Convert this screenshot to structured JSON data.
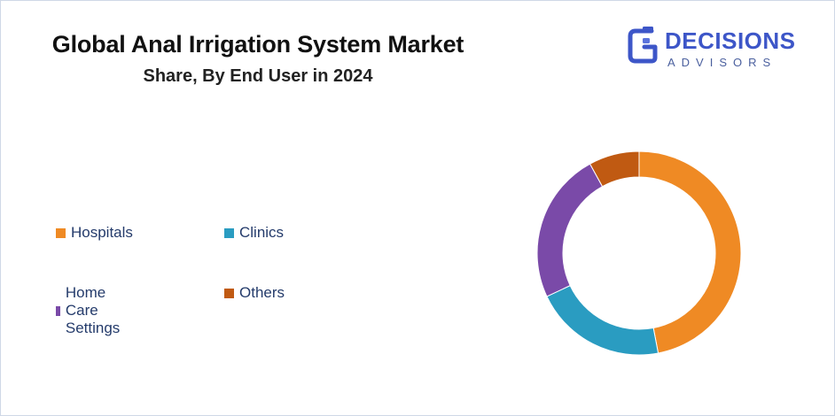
{
  "header": {
    "title": "Global Anal Irrigation System Market",
    "subtitle": "Share, By End User in 2024"
  },
  "logo": {
    "word": "DECISIONS",
    "sub": "ADVISORS",
    "colors": {
      "primary": "#3d56c8",
      "secondary": "#4a5f9e"
    }
  },
  "chart_data": {
    "type": "pie",
    "variant": "donut",
    "title": "Global Anal Irrigation System Market",
    "subtitle": "Share, By End User in 2024",
    "legend_position": "left",
    "categories": [
      "Hospitals",
      "Clinics",
      "Home Care Settings",
      "Others"
    ],
    "values": [
      47,
      21,
      24,
      8
    ],
    "colors": [
      "#ef8a24",
      "#2a9cc1",
      "#7a4aa8",
      "#c05a12"
    ]
  }
}
